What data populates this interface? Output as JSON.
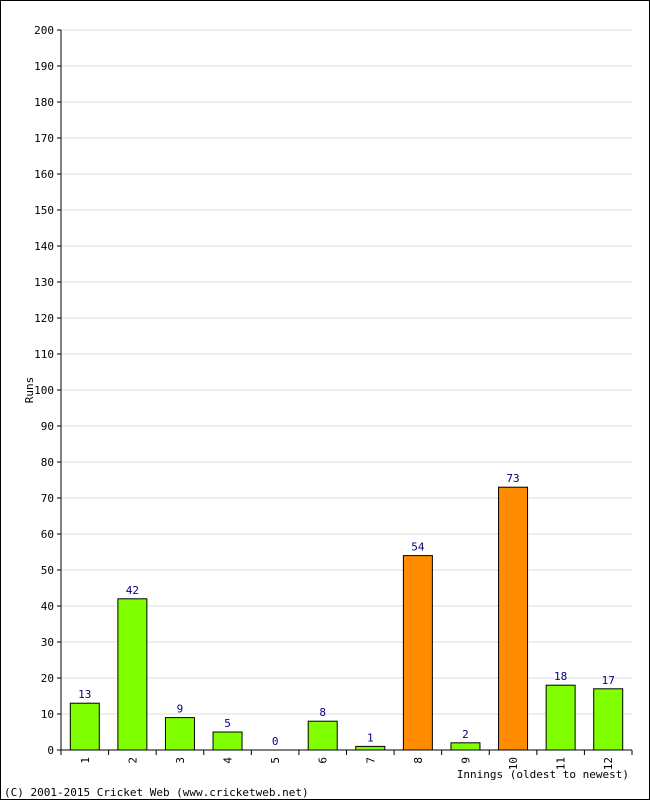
{
  "chart_data": {
    "type": "bar",
    "title": "",
    "ylabel": "Runs",
    "xlabel": "Innings (oldest to newest)",
    "ylim": [
      0,
      200
    ],
    "ytick_step": 10,
    "grid": true,
    "categories": [
      "1",
      "2",
      "3",
      "4",
      "5",
      "6",
      "7",
      "8",
      "9",
      "10",
      "11",
      "12"
    ],
    "values": [
      13,
      42,
      9,
      5,
      0,
      8,
      1,
      54,
      2,
      73,
      18,
      17
    ],
    "colors": [
      "#7fff00",
      "#7fff00",
      "#7fff00",
      "#7fff00",
      "#7fff00",
      "#7fff00",
      "#7fff00",
      "#ff8c00",
      "#7fff00",
      "#ff8c00",
      "#7fff00",
      "#7fff00"
    ]
  },
  "footer": {
    "copyright": "(C) 2001-2015 Cricket Web (www.cricketweb.net)"
  },
  "style": {
    "grid_color": "#dddddd",
    "label_color": "#000080",
    "bar_stroke": "#000000"
  }
}
